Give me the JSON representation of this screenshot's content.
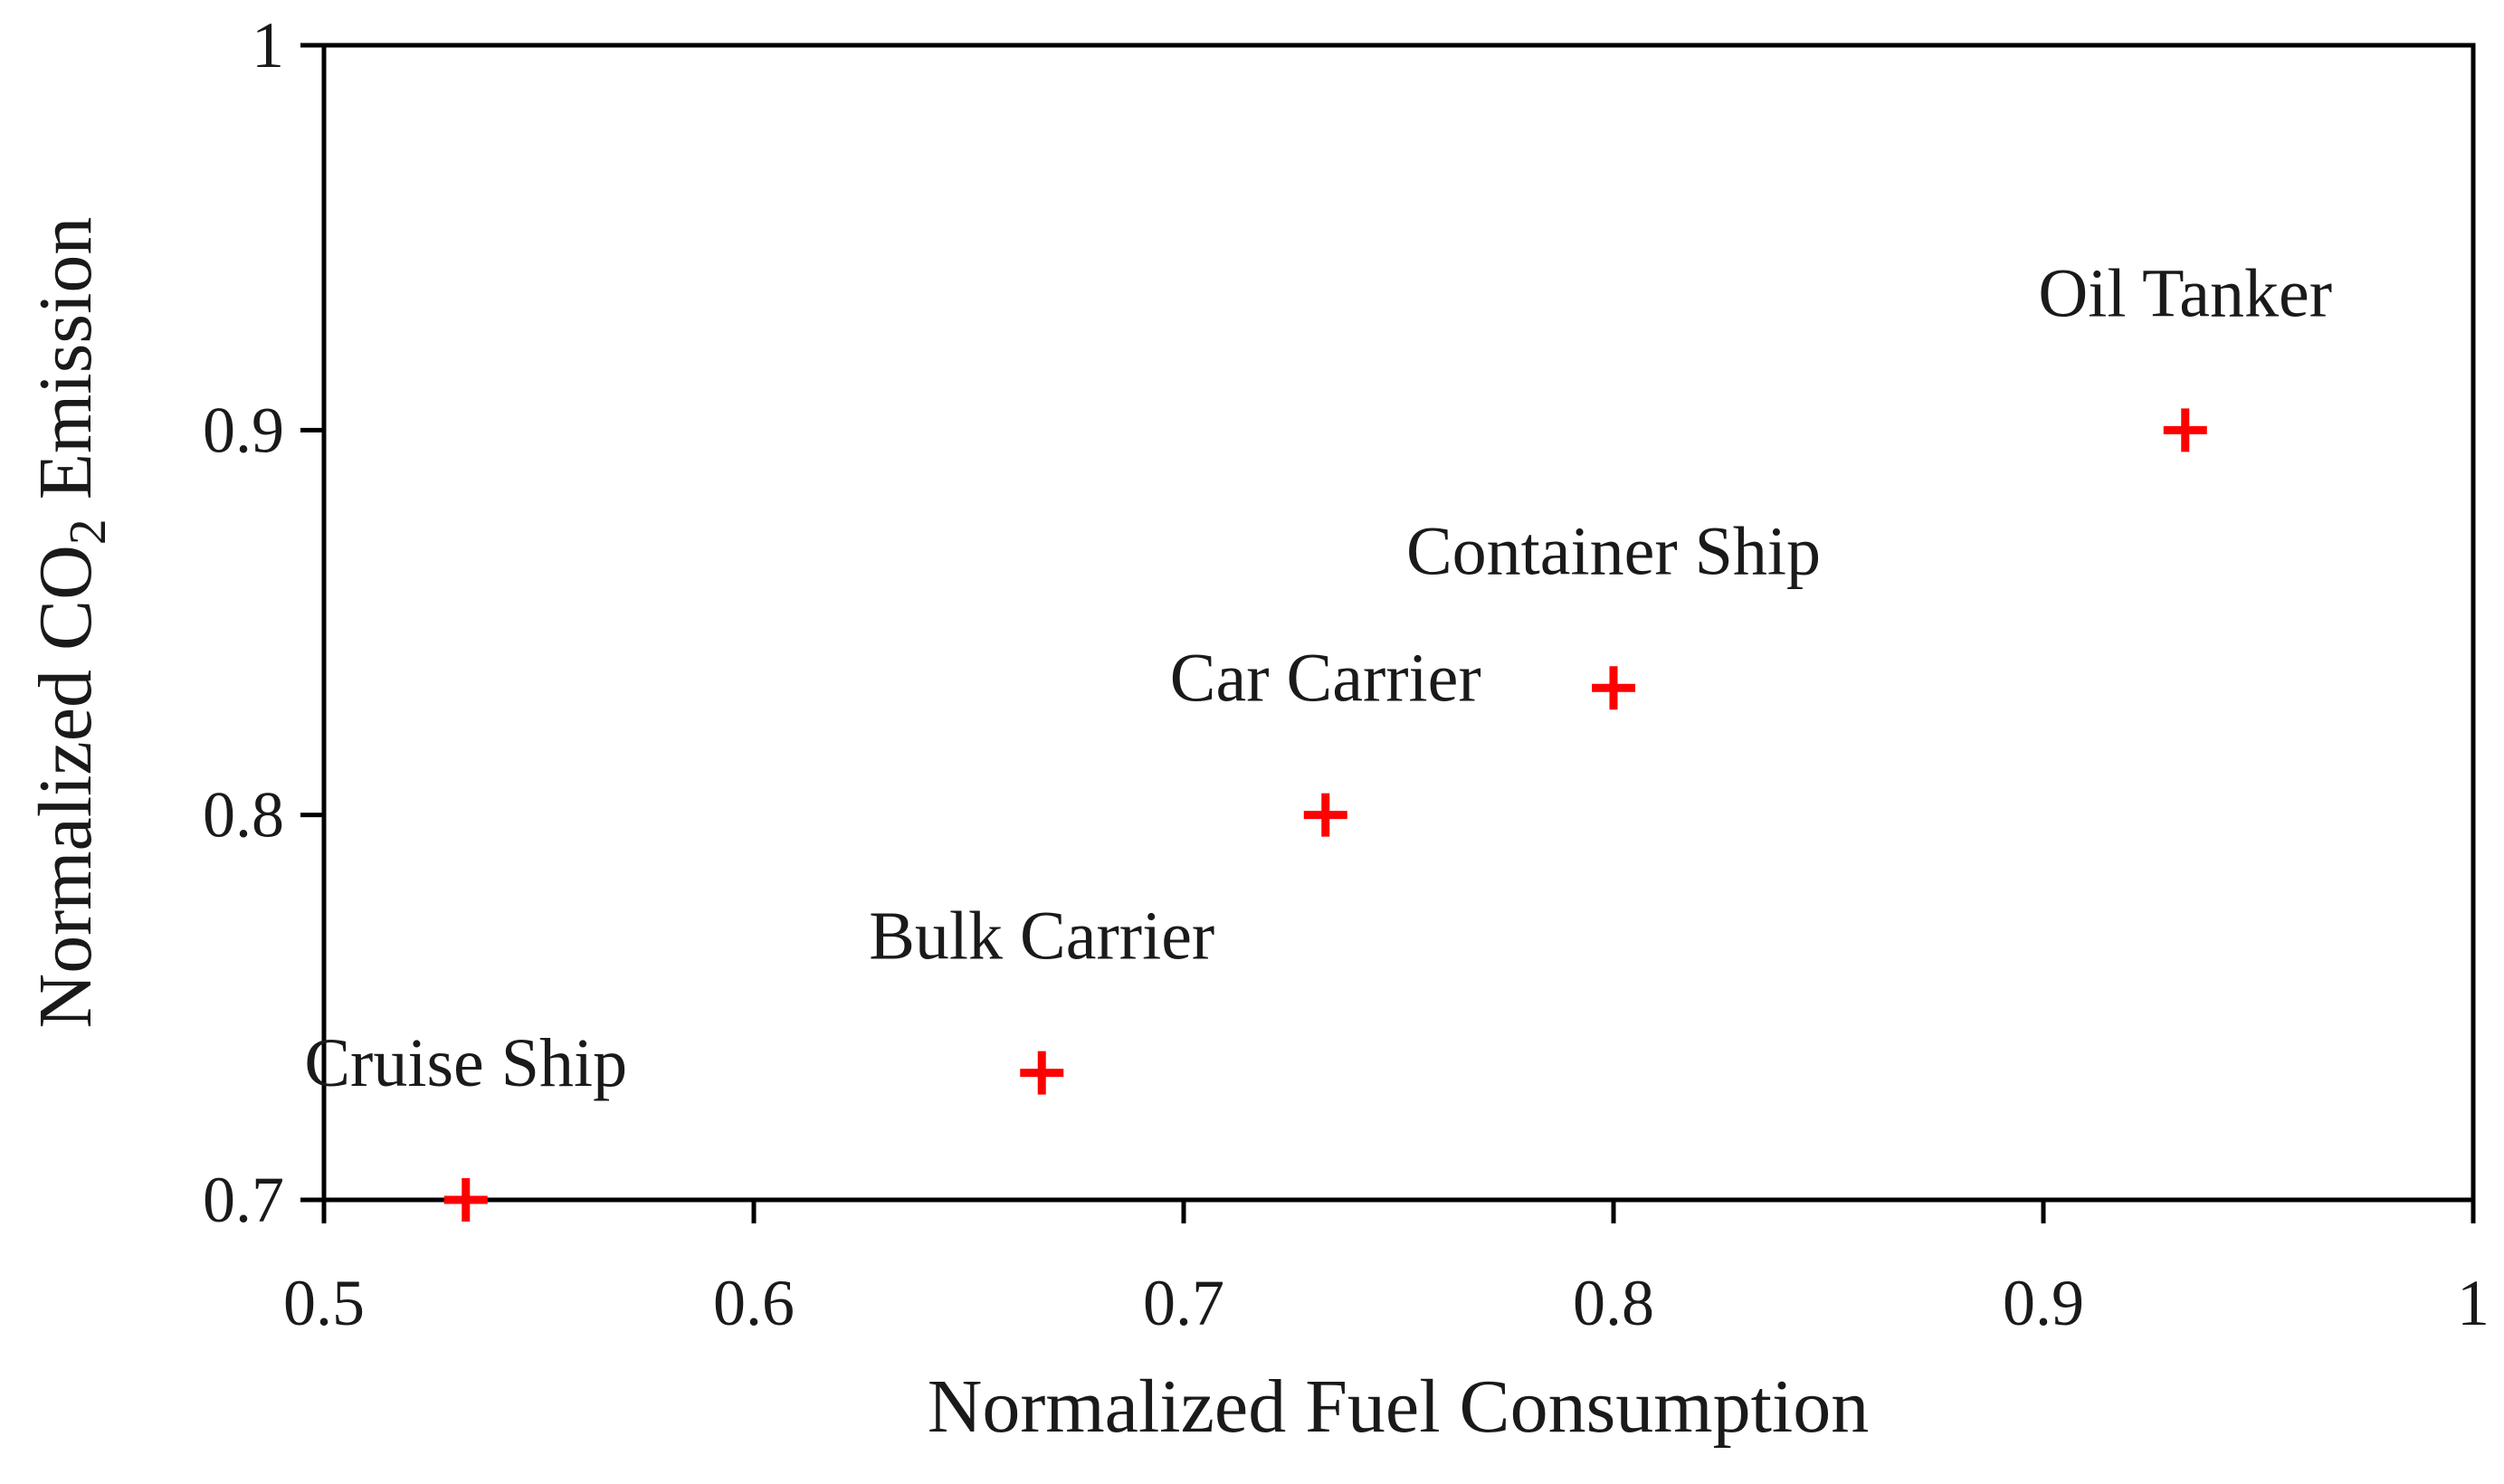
{
  "colors": {
    "marker": "#ff0000",
    "axis": "#000000",
    "text": "#1a1a1a",
    "background": "#ffffff"
  },
  "chart_data": {
    "type": "scatter",
    "xlabel": "Normalized Fuel Consumption",
    "ylabel": {
      "prefix": "Normalized CO",
      "subscript": "2",
      "suffix": " Emission"
    },
    "xlim": [
      0.5,
      1
    ],
    "ylim": [
      0.7,
      1
    ],
    "xticks": [
      "0.5",
      "0.6",
      "0.7",
      "0.8",
      "0.9",
      "1"
    ],
    "yticks": [
      "0.7",
      "0.8",
      "0.9",
      "1"
    ],
    "grid": false,
    "legend": "none",
    "marker": "plus",
    "points": [
      {
        "label": "Cruise Ship",
        "x": 0.533,
        "y": 0.7
      },
      {
        "label": "Bulk Carrier",
        "x": 0.667,
        "y": 0.733
      },
      {
        "label": "Car Carrier",
        "x": 0.733,
        "y": 0.8
      },
      {
        "label": "Container Ship",
        "x": 0.8,
        "y": 0.833
      },
      {
        "label": "Oil Tanker",
        "x": 0.933,
        "y": 0.9
      }
    ]
  }
}
